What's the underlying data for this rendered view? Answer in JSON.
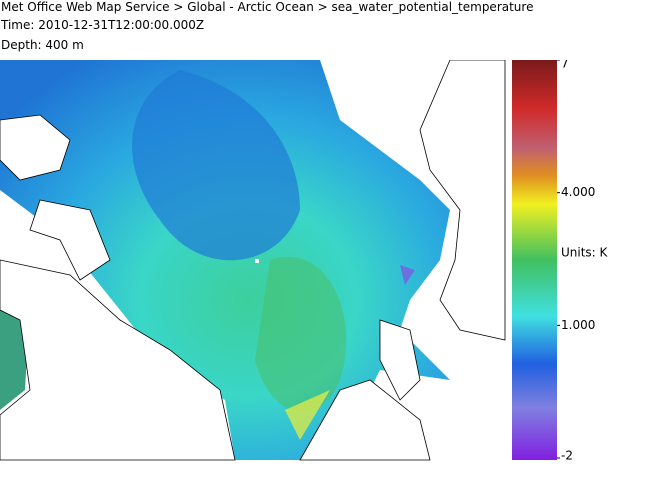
{
  "header": {
    "title": "Met Office Web Map Service > Global - Arctic Ocean > sea_water_potential_temperature",
    "time": "Time: 2010-12-31T12:00:00.000Z",
    "depth": "Depth: 400 m"
  },
  "legend": {
    "range": [
      -2,
      7
    ],
    "ticks": [
      7,
      {
        "value": 4,
        "label": "4.000"
      },
      {
        "value": 1,
        "label": "1.000"
      },
      -2
    ],
    "units": "Units: K"
  }
}
